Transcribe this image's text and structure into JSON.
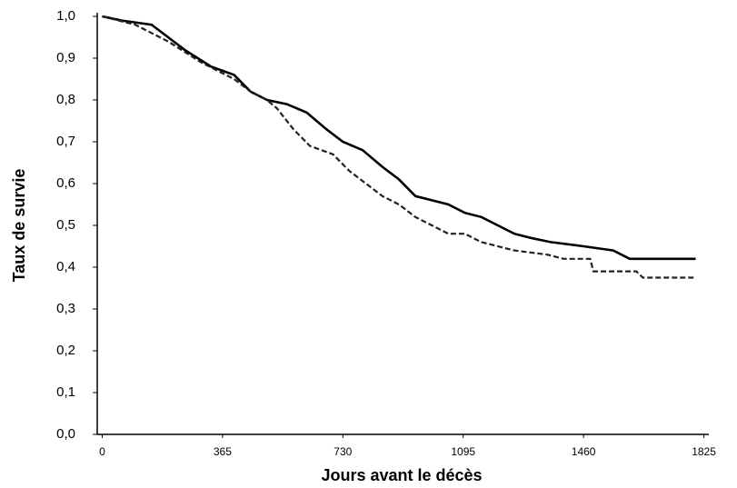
{
  "chart_data": {
    "type": "line",
    "y_label": "Taux de survie",
    "x_label": "Jours avant le décès",
    "xlim": [
      -15,
      1840
    ],
    "xticks": [
      0,
      365,
      730,
      1095,
      1460,
      1825
    ],
    "ylim": [
      0,
      1.0
    ],
    "yticks": [
      {
        "value": 0,
        "label": "0,0"
      },
      {
        "value": 0.1,
        "label": "0,1"
      },
      {
        "value": 0.2,
        "label": "0,2"
      },
      {
        "value": 0.3,
        "label": "0,3"
      },
      {
        "value": 0.4,
        "label": "0,4"
      },
      {
        "value": 0.5,
        "label": "0,5"
      },
      {
        "value": 0.6,
        "label": "0,6"
      },
      {
        "value": 0.7,
        "label": "0,7"
      },
      {
        "value": 0.8,
        "label": "0,8"
      },
      {
        "value": 0.9,
        "label": "0,9"
      },
      {
        "value": 1.0,
        "label": "1,0"
      }
    ],
    "series": [
      {
        "color": "#000000",
        "line_style": "solid",
        "x": [
          0,
          60,
          150,
          200,
          250,
          330,
          400,
          450,
          500,
          560,
          620,
          680,
          730,
          790,
          850,
          900,
          950,
          1000,
          1050,
          1100,
          1150,
          1200,
          1250,
          1300,
          1360,
          1460,
          1550,
          1600,
          1800
        ],
        "values": [
          1.0,
          0.99,
          0.98,
          0.95,
          0.92,
          0.88,
          0.86,
          0.82,
          0.8,
          0.79,
          0.77,
          0.73,
          0.7,
          0.68,
          0.64,
          0.61,
          0.57,
          0.56,
          0.55,
          0.53,
          0.52,
          0.5,
          0.48,
          0.47,
          0.46,
          0.45,
          0.44,
          0.42,
          0.42
        ]
      },
      {
        "color": "#222222",
        "line_style": "dashed",
        "x": [
          0,
          100,
          200,
          300,
          400,
          450,
          500,
          530,
          580,
          630,
          700,
          750,
          800,
          850,
          900,
          950,
          1000,
          1050,
          1100,
          1150,
          1250,
          1350,
          1400,
          1480,
          1490,
          1620,
          1640,
          1800
        ],
        "values": [
          1.0,
          0.98,
          0.94,
          0.89,
          0.85,
          0.82,
          0.8,
          0.78,
          0.73,
          0.69,
          0.67,
          0.63,
          0.6,
          0.57,
          0.55,
          0.52,
          0.5,
          0.48,
          0.48,
          0.46,
          0.44,
          0.43,
          0.42,
          0.42,
          0.39,
          0.39,
          0.375,
          0.375
        ]
      }
    ]
  }
}
